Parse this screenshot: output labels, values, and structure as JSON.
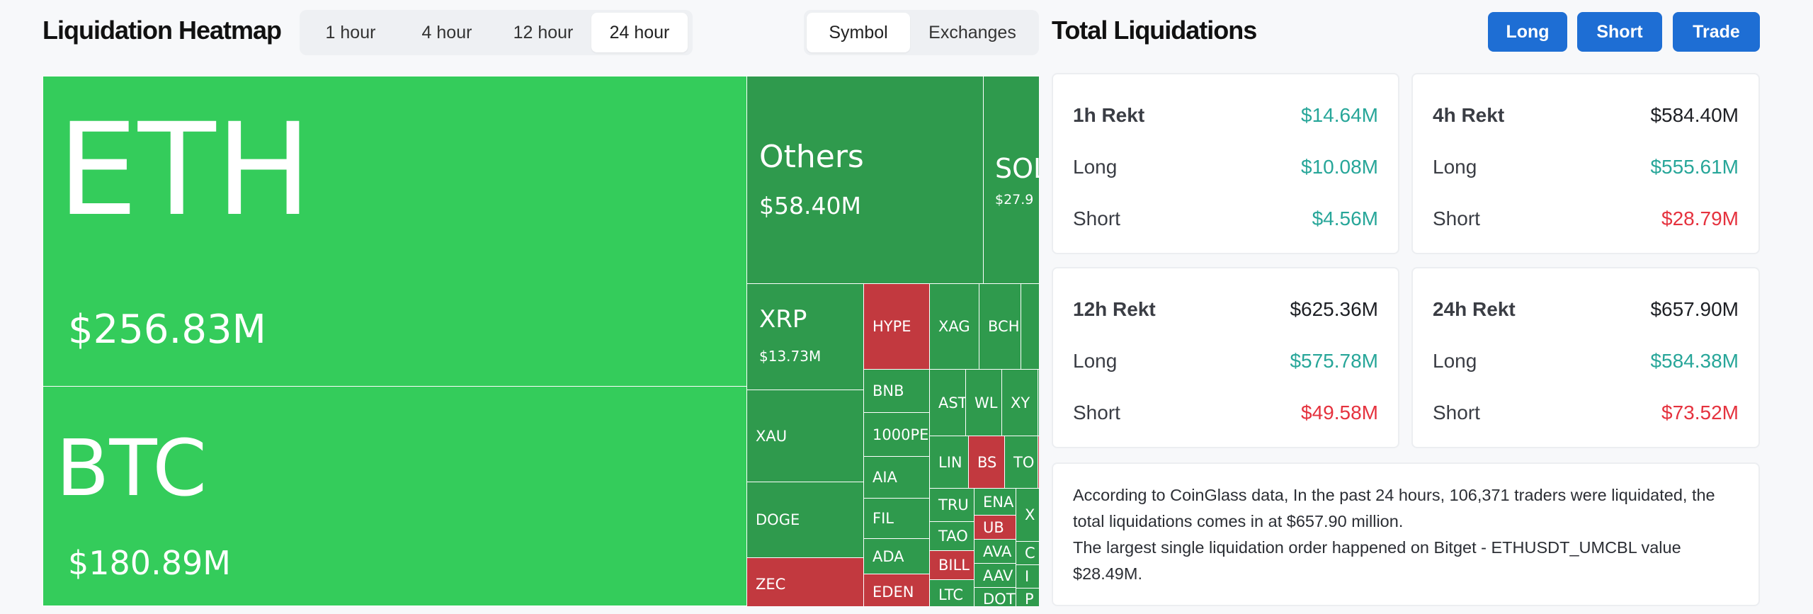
{
  "heatmap": {
    "title": "Liquidation Heatmap",
    "time_tabs": [
      "1 hour",
      "4 hour",
      "12 hour",
      "24 hour"
    ],
    "active_time_tab": "24 hour",
    "view_tabs": [
      "Symbol",
      "Exchanges"
    ],
    "active_view_tab": "Symbol",
    "colors": {
      "long_dominant": "#34cc5b",
      "long": "#2f9a4d",
      "short": "#c2393f"
    },
    "tiles": [
      {
        "symbol": "ETH",
        "value": "$256.83M",
        "side": "long"
      },
      {
        "symbol": "BTC",
        "value": "$180.89M",
        "side": "long"
      },
      {
        "symbol": "Others",
        "value": "$58.40M",
        "side": "long"
      },
      {
        "symbol": "SOL",
        "value": "$27.9",
        "side": "long"
      },
      {
        "symbol": "XRP",
        "value": "$13.73M",
        "side": "long"
      },
      {
        "symbol": "XAU",
        "value": "",
        "side": "long"
      },
      {
        "symbol": "DOGE",
        "value": "",
        "side": "long"
      },
      {
        "symbol": "ZEC",
        "value": "",
        "side": "short"
      },
      {
        "symbol": "HYPE",
        "value": "",
        "side": "short"
      },
      {
        "symbol": "XAG",
        "value": "",
        "side": "long"
      },
      {
        "symbol": "BCH",
        "value": "",
        "side": "long"
      },
      {
        "symbol": "BNB",
        "value": "",
        "side": "long"
      },
      {
        "symbol": "1000PE",
        "value": "",
        "side": "long"
      },
      {
        "symbol": "AIA",
        "value": "",
        "side": "long"
      },
      {
        "symbol": "FIL",
        "value": "",
        "side": "long"
      },
      {
        "symbol": "ADA",
        "value": "",
        "side": "long"
      },
      {
        "symbol": "EDEN",
        "value": "",
        "side": "short"
      },
      {
        "symbol": "AST",
        "value": "",
        "side": "long"
      },
      {
        "symbol": "WL",
        "value": "",
        "side": "long"
      },
      {
        "symbol": "XY",
        "value": "",
        "side": "long"
      },
      {
        "symbol": "LIN",
        "value": "",
        "side": "long"
      },
      {
        "symbol": "BS",
        "value": "",
        "side": "short"
      },
      {
        "symbol": "TO",
        "value": "",
        "side": "long"
      },
      {
        "symbol": "TRU",
        "value": "",
        "side": "long"
      },
      {
        "symbol": "TAO",
        "value": "",
        "side": "long"
      },
      {
        "symbol": "BILL",
        "value": "",
        "side": "short"
      },
      {
        "symbol": "LTC",
        "value": "",
        "side": "long"
      },
      {
        "symbol": "ENA",
        "value": "",
        "side": "long"
      },
      {
        "symbol": "UB",
        "value": "",
        "side": "short"
      },
      {
        "symbol": "AVA",
        "value": "",
        "side": "long"
      },
      {
        "symbol": "AAV",
        "value": "",
        "side": "long"
      },
      {
        "symbol": "DOT",
        "value": "",
        "side": "long"
      },
      {
        "symbol": "X",
        "value": "",
        "side": "long"
      },
      {
        "symbol": "C",
        "value": "",
        "side": "long"
      },
      {
        "symbol": "I",
        "value": "",
        "side": "long"
      },
      {
        "symbol": "P",
        "value": "",
        "side": "long"
      }
    ]
  },
  "totals": {
    "title": "Total Liquidations",
    "buttons": {
      "long": "Long",
      "short": "Short",
      "trade": "Trade"
    },
    "cards": [
      {
        "title": "1h Rekt",
        "total": "$14.64M",
        "total_color": "green",
        "long_label": "Long",
        "long": "$10.08M",
        "long_color": "green",
        "short_label": "Short",
        "short": "$4.56M",
        "short_color": "green"
      },
      {
        "title": "4h Rekt",
        "total": "$584.40M",
        "total_color": "dark",
        "long_label": "Long",
        "long": "$555.61M",
        "long_color": "green",
        "short_label": "Short",
        "short": "$28.79M",
        "short_color": "red"
      },
      {
        "title": "12h Rekt",
        "total": "$625.36M",
        "total_color": "dark",
        "long_label": "Long",
        "long": "$575.78M",
        "long_color": "green",
        "short_label": "Short",
        "short": "$49.58M",
        "short_color": "red"
      },
      {
        "title": "24h Rekt",
        "total": "$657.90M",
        "total_color": "dark",
        "long_label": "Long",
        "long": "$584.38M",
        "long_color": "green",
        "short_label": "Short",
        "short": "$73.52M",
        "short_color": "red"
      }
    ],
    "summary_line1": "According to CoinGlass data, In the past 24 hours, 106,371 traders were liquidated, the total liquidations comes in at $657.90 million.",
    "summary_line2": "The largest single liquidation order happened on Bitget - ETHUSDT_UMCBL value $28.49M."
  }
}
